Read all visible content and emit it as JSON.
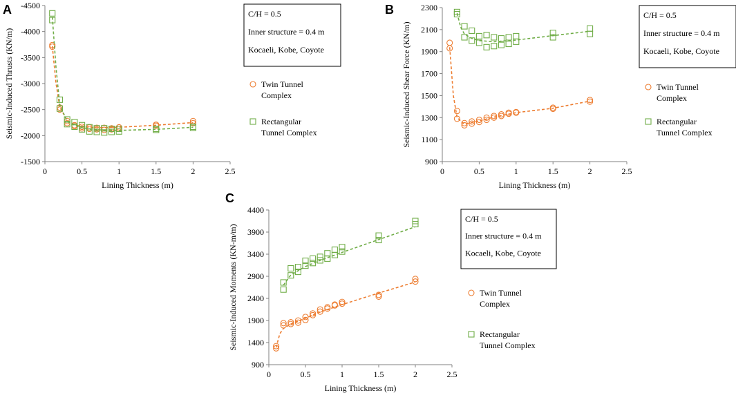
{
  "figure": {
    "colors": {
      "twin": "#ED7D31",
      "rect": "#70AD47",
      "text": "#000000",
      "axis": "#808080"
    },
    "legend": {
      "twin": "Twin Tunnel Complex",
      "rect": "Rectangular Tunnel Complex"
    },
    "info_box": [
      "C/H = 0.5",
      "Inner structure = 0.4 m",
      "Kocaeli, Kobe, Coyote"
    ]
  },
  "chart_data": [
    {
      "id": "A",
      "type": "scatter",
      "ylabel": "Seismic-Induced Thrusts (KN/m)",
      "xlabel": "Lining Thickness (m)",
      "xlim": [
        0,
        2.5
      ],
      "xticks": [
        0,
        0.5,
        1,
        1.5,
        2,
        2.5
      ],
      "ylim": [
        -1500,
        -4500
      ],
      "yticks": [
        -1500,
        -2000,
        -2500,
        -3000,
        -3500,
        -4000,
        -4500
      ],
      "series": [
        {
          "name": "Twin Tunnel Complex",
          "points": [
            [
              0.1,
              -3740
            ],
            [
              0.1,
              -3710
            ],
            [
              0.2,
              -2540
            ],
            [
              0.2,
              -2500
            ],
            [
              0.3,
              -2280
            ],
            [
              0.3,
              -2240
            ],
            [
              0.4,
              -2200
            ],
            [
              0.4,
              -2180
            ],
            [
              0.5,
              -2170
            ],
            [
              0.5,
              -2140
            ],
            [
              0.6,
              -2160
            ],
            [
              0.6,
              -2130
            ],
            [
              0.7,
              -2150
            ],
            [
              0.7,
              -2120
            ],
            [
              0.8,
              -2150
            ],
            [
              0.8,
              -2110
            ],
            [
              0.9,
              -2140
            ],
            [
              0.9,
              -2120
            ],
            [
              1.0,
              -2160
            ],
            [
              1.0,
              -2130
            ],
            [
              1.5,
              -2210
            ],
            [
              1.5,
              -2190
            ],
            [
              2.0,
              -2280
            ],
            [
              2.0,
              -2240
            ]
          ],
          "fit": [
            [
              0.1,
              -3720
            ],
            [
              0.15,
              -3000
            ],
            [
              0.2,
              -2550
            ],
            [
              0.3,
              -2290
            ],
            [
              0.4,
              -2210
            ],
            [
              0.5,
              -2170
            ],
            [
              0.7,
              -2150
            ],
            [
              1.0,
              -2160
            ],
            [
              1.5,
              -2200
            ],
            [
              2.0,
              -2250
            ]
          ]
        },
        {
          "name": "Rectangular Tunnel Complex",
          "points": [
            [
              0.1,
              -4350
            ],
            [
              0.1,
              -4220
            ],
            [
              0.2,
              -2690
            ],
            [
              0.2,
              -2520
            ],
            [
              0.3,
              -2310
            ],
            [
              0.3,
              -2220
            ],
            [
              0.4,
              -2260
            ],
            [
              0.4,
              -2170
            ],
            [
              0.5,
              -2200
            ],
            [
              0.5,
              -2120
            ],
            [
              0.6,
              -2160
            ],
            [
              0.6,
              -2080
            ],
            [
              0.7,
              -2140
            ],
            [
              0.7,
              -2070
            ],
            [
              0.8,
              -2140
            ],
            [
              0.8,
              -2060
            ],
            [
              0.9,
              -2130
            ],
            [
              0.9,
              -2070
            ],
            [
              1.0,
              -2130
            ],
            [
              1.0,
              -2080
            ],
            [
              1.5,
              -2130
            ],
            [
              1.5,
              -2110
            ],
            [
              2.0,
              -2170
            ],
            [
              2.0,
              -2150
            ]
          ],
          "fit": [
            [
              0.1,
              -4280
            ],
            [
              0.15,
              -3300
            ],
            [
              0.2,
              -2600
            ],
            [
              0.3,
              -2270
            ],
            [
              0.4,
              -2200
            ],
            [
              0.5,
              -2150
            ],
            [
              0.7,
              -2110
            ],
            [
              1.0,
              -2100
            ],
            [
              1.5,
              -2120
            ],
            [
              2.0,
              -2160
            ]
          ]
        }
      ]
    },
    {
      "id": "B",
      "type": "scatter",
      "ylabel": "Seismic-Induced Shear Force (KN/m)",
      "xlabel": "Lining Thickness (m)",
      "xlim": [
        0,
        2.5
      ],
      "xticks": [
        0,
        0.5,
        1,
        1.5,
        2,
        2.5
      ],
      "ylim": [
        900,
        2300
      ],
      "yticks": [
        900,
        1100,
        1300,
        1500,
        1700,
        1900,
        2100,
        2300
      ],
      "series": [
        {
          "name": "Twin Tunnel Complex",
          "points": [
            [
              0.1,
              1980
            ],
            [
              0.1,
              1930
            ],
            [
              0.2,
              1360
            ],
            [
              0.2,
              1290
            ],
            [
              0.3,
              1250
            ],
            [
              0.3,
              1230
            ],
            [
              0.4,
              1265
            ],
            [
              0.4,
              1245
            ],
            [
              0.5,
              1280
            ],
            [
              0.5,
              1260
            ],
            [
              0.6,
              1300
            ],
            [
              0.6,
              1280
            ],
            [
              0.7,
              1315
            ],
            [
              0.7,
              1300
            ],
            [
              0.8,
              1330
            ],
            [
              0.8,
              1315
            ],
            [
              0.9,
              1345
            ],
            [
              0.9,
              1335
            ],
            [
              1.0,
              1350
            ],
            [
              1.0,
              1345
            ],
            [
              1.5,
              1390
            ],
            [
              1.5,
              1380
            ],
            [
              2.0,
              1460
            ],
            [
              2.0,
              1445
            ]
          ],
          "fit": [
            [
              0.1,
              1940
            ],
            [
              0.15,
              1500
            ],
            [
              0.2,
              1300
            ],
            [
              0.3,
              1240
            ],
            [
              0.4,
              1255
            ],
            [
              0.5,
              1270
            ],
            [
              0.7,
              1305
            ],
            [
              1.0,
              1345
            ],
            [
              1.5,
              1385
            ],
            [
              2.0,
              1450
            ]
          ]
        },
        {
          "name": "Rectangular Tunnel Complex",
          "points": [
            [
              0.2,
              2260
            ],
            [
              0.2,
              2240
            ],
            [
              0.3,
              2130
            ],
            [
              0.3,
              2030
            ],
            [
              0.4,
              2090
            ],
            [
              0.4,
              2000
            ],
            [
              0.5,
              2040
            ],
            [
              0.5,
              1980
            ],
            [
              0.6,
              2050
            ],
            [
              0.6,
              1940
            ],
            [
              0.7,
              2030
            ],
            [
              0.7,
              1950
            ],
            [
              0.8,
              2020
            ],
            [
              0.8,
              1960
            ],
            [
              0.9,
              2030
            ],
            [
              0.9,
              1970
            ],
            [
              1.0,
              2040
            ],
            [
              1.0,
              1990
            ],
            [
              1.5,
              2070
            ],
            [
              1.5,
              2030
            ],
            [
              2.0,
              2110
            ],
            [
              2.0,
              2060
            ]
          ],
          "fit": [
            [
              0.2,
              2250
            ],
            [
              0.25,
              2120
            ],
            [
              0.3,
              2060
            ],
            [
              0.4,
              2020
            ],
            [
              0.5,
              2000
            ],
            [
              0.7,
              1990
            ],
            [
              1.0,
              2005
            ],
            [
              1.5,
              2045
            ],
            [
              2.0,
              2085
            ]
          ]
        }
      ]
    },
    {
      "id": "C",
      "type": "scatter",
      "ylabel": "Seismic-Induced Moments (KN-m/m)",
      "xlabel": "Lining Thickness (m)",
      "xlim": [
        0,
        2.5
      ],
      "xticks": [
        0,
        0.5,
        1,
        1.5,
        2,
        2.5
      ],
      "ylim": [
        900,
        4400
      ],
      "yticks": [
        900,
        1400,
        1900,
        2400,
        2900,
        3400,
        3900,
        4400
      ],
      "series": [
        {
          "name": "Twin Tunnel Complex",
          "points": [
            [
              0.1,
              1320
            ],
            [
              0.1,
              1270
            ],
            [
              0.2,
              1840
            ],
            [
              0.2,
              1790
            ],
            [
              0.3,
              1860
            ],
            [
              0.3,
              1820
            ],
            [
              0.4,
              1900
            ],
            [
              0.4,
              1850
            ],
            [
              0.5,
              1980
            ],
            [
              0.5,
              1910
            ],
            [
              0.6,
              2060
            ],
            [
              0.6,
              2020
            ],
            [
              0.7,
              2150
            ],
            [
              0.7,
              2100
            ],
            [
              0.8,
              2200
            ],
            [
              0.8,
              2170
            ],
            [
              0.9,
              2260
            ],
            [
              0.9,
              2240
            ],
            [
              1.0,
              2320
            ],
            [
              1.0,
              2280
            ],
            [
              1.5,
              2480
            ],
            [
              1.5,
              2440
            ],
            [
              2.0,
              2840
            ],
            [
              2.0,
              2780
            ]
          ],
          "fit": [
            [
              0.1,
              1290
            ],
            [
              0.15,
              1600
            ],
            [
              0.2,
              1720
            ],
            [
              0.3,
              1820
            ],
            [
              0.5,
              1950
            ],
            [
              0.7,
              2090
            ],
            [
              1.0,
              2260
            ],
            [
              1.5,
              2520
            ],
            [
              2.0,
              2770
            ]
          ]
        },
        {
          "name": "Rectangular Tunnel Complex",
          "points": [
            [
              0.2,
              2760
            ],
            [
              0.2,
              2600
            ],
            [
              0.3,
              3080
            ],
            [
              0.3,
              2920
            ],
            [
              0.4,
              3110
            ],
            [
              0.4,
              3000
            ],
            [
              0.5,
              3250
            ],
            [
              0.5,
              3140
            ],
            [
              0.6,
              3300
            ],
            [
              0.6,
              3200
            ],
            [
              0.7,
              3340
            ],
            [
              0.7,
              3260
            ],
            [
              0.8,
              3420
            ],
            [
              0.8,
              3300
            ],
            [
              0.9,
              3500
            ],
            [
              0.9,
              3380
            ],
            [
              1.0,
              3560
            ],
            [
              1.0,
              3460
            ],
            [
              1.5,
              3820
            ],
            [
              1.5,
              3720
            ],
            [
              2.0,
              4150
            ],
            [
              2.0,
              4080
            ]
          ],
          "fit": [
            [
              0.2,
              2700
            ],
            [
              0.3,
              2930
            ],
            [
              0.5,
              3120
            ],
            [
              0.7,
              3260
            ],
            [
              1.0,
              3440
            ],
            [
              1.5,
              3730
            ],
            [
              2.0,
              4020
            ]
          ]
        }
      ]
    }
  ]
}
